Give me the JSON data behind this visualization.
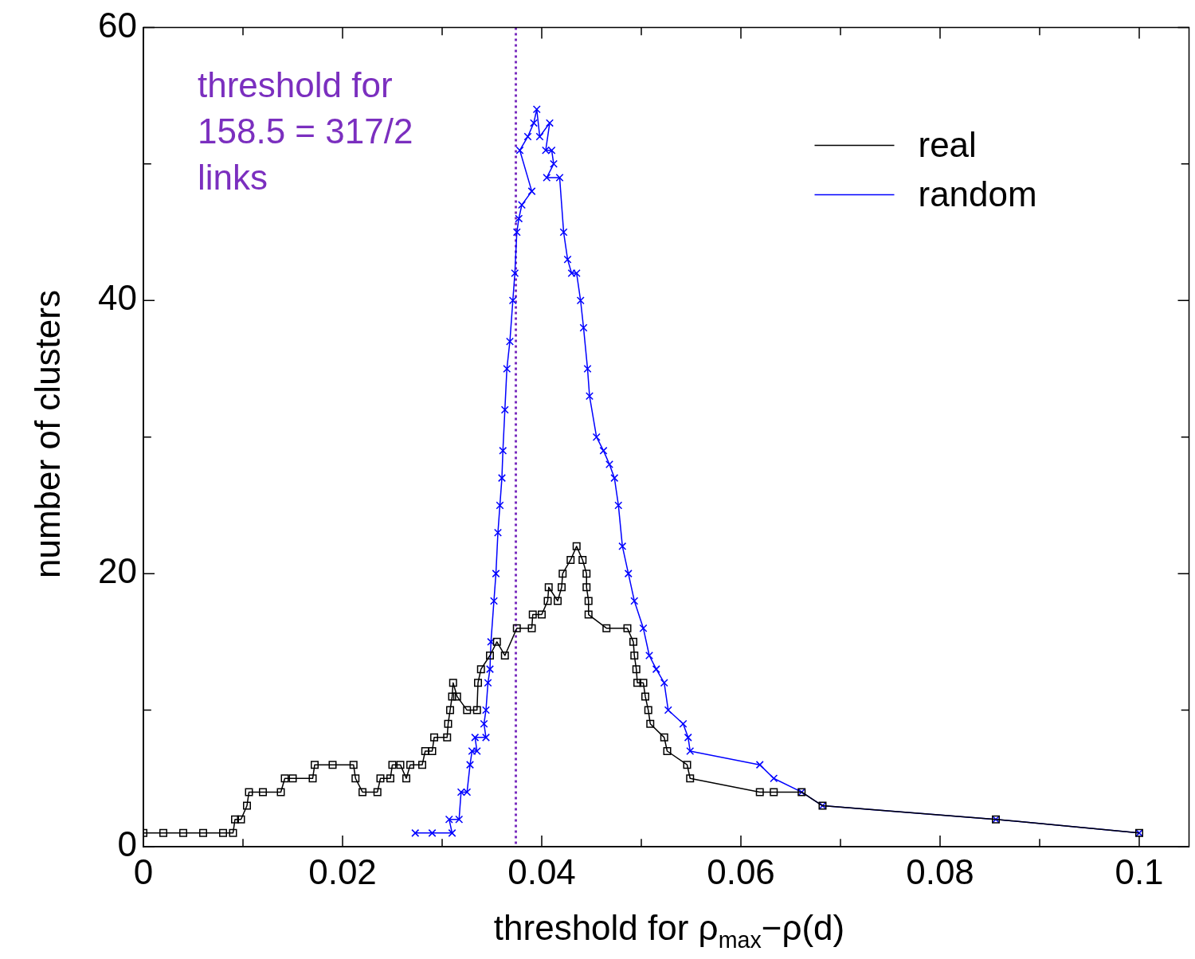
{
  "chart_data": {
    "type": "line",
    "xlabel": "threshold for ρ$_{max}$−ρ(d)",
    "ylabel": "number of clusters",
    "xlim": [
      0,
      0.105
    ],
    "xticks": [
      0,
      {
        "value": 0.01,
        "label": null
      },
      0.02,
      {
        "value": 0.03,
        "label": null
      },
      0.04,
      {
        "value": 0.05,
        "label": null
      },
      0.06,
      {
        "value": 0.07,
        "label": null
      },
      0.08,
      {
        "value": 0.09,
        "label": null
      },
      0.1
    ],
    "ylim": [
      0,
      60
    ],
    "yticks": [
      0,
      {
        "value": 10,
        "label": null
      },
      20,
      {
        "value": 30,
        "label": null
      },
      40,
      {
        "value": 50,
        "label": null
      },
      60
    ],
    "grid": false,
    "legend": "top right",
    "line_style": "solid",
    "ref_lines": [
      {
        "axis": "x",
        "value": 0.0374,
        "color": "#7b2fbf",
        "line_style": "dotted"
      }
    ],
    "annotations": [
      "threshold for\n158.5 = 317/2\nlinks"
    ],
    "series": [
      {
        "name": "real",
        "color": "#000000",
        "marker": "square",
        "x": [
          0,
          0.002,
          0.004,
          0.006,
          0.008,
          0.009,
          0.0092,
          0.0098,
          0.0104,
          0.0106,
          0.012,
          0.0138,
          0.0142,
          0.015,
          0.017,
          0.0172,
          0.019,
          0.0211,
          0.0213,
          0.022,
          0.0235,
          0.0238,
          0.0248,
          0.025,
          0.0258,
          0.0264,
          0.0268,
          0.028,
          0.0283,
          0.029,
          0.0292,
          0.0305,
          0.0306,
          0.0308,
          0.031,
          0.0311,
          0.0315,
          0.0325,
          0.0335,
          0.0336,
          0.0339,
          0.0348,
          0.0355,
          0.0363,
          0.0375,
          0.039,
          0.0391,
          0.04,
          0.0406,
          0.0407,
          0.0416,
          0.042,
          0.0421,
          0.0429,
          0.0435,
          0.0441,
          0.0445,
          0.0445,
          0.0447,
          0.0447,
          0.0465,
          0.0486,
          0.0492,
          0.0493,
          0.0495,
          0.0496,
          0.0502,
          0.0504,
          0.0507,
          0.0509,
          0.0523,
          0.0526,
          0.0546,
          0.0549,
          0.0619,
          0.0633,
          0.0661,
          0.0682,
          0.0856,
          0.1
        ],
        "values": [
          1,
          1,
          1,
          1,
          1,
          1,
          2,
          2,
          3,
          4,
          4,
          4,
          5,
          5,
          5,
          6,
          6,
          6,
          5,
          4,
          4,
          5,
          5,
          6,
          6,
          5,
          6,
          6,
          7,
          7,
          8,
          8,
          9,
          10,
          11,
          12,
          11,
          10,
          10,
          12,
          13,
          14,
          15,
          14,
          16,
          16,
          17,
          17,
          18,
          19,
          18,
          19,
          20,
          21,
          22,
          21,
          20,
          19,
          18,
          17,
          16,
          16,
          15,
          14,
          13,
          12,
          12,
          11,
          10,
          9,
          8,
          7,
          6,
          5,
          4,
          4,
          4,
          3,
          2,
          1
        ]
      },
      {
        "name": "random",
        "color": "#0000ff",
        "marker": "cross",
        "x": [
          0.0273,
          0.029,
          0.031,
          0.0307,
          0.0317,
          0.0319,
          0.0325,
          0.0328,
          0.033,
          0.0335,
          0.0333,
          0.0344,
          0.0342,
          0.0344,
          0.0346,
          0.0348,
          0.0349,
          0.0352,
          0.0354,
          0.0356,
          0.0358,
          0.036,
          0.0361,
          0.0363,
          0.0365,
          0.0368,
          0.0371,
          0.0373,
          0.0375,
          0.0377,
          0.038,
          0.039,
          0.0378,
          0.0386,
          0.0392,
          0.0395,
          0.0398,
          0.0408,
          0.0404,
          0.041,
          0.0412,
          0.0405,
          0.0418,
          0.0422,
          0.0426,
          0.043,
          0.0435,
          0.0439,
          0.0442,
          0.0446,
          0.0448,
          0.0455,
          0.0462,
          0.0468,
          0.0473,
          0.0477,
          0.0481,
          0.0487,
          0.0493,
          0.0502,
          0.0508,
          0.0515,
          0.0523,
          0.0527,
          0.0542,
          0.0547,
          0.0549,
          0.0619,
          0.0633,
          0.0661,
          0.0682,
          0.0856,
          0.1
        ],
        "values": [
          1,
          1,
          1,
          2,
          2,
          4,
          4,
          6,
          7,
          7,
          8,
          8,
          9,
          10,
          12,
          13,
          15,
          18,
          20,
          23,
          25,
          27,
          29,
          32,
          35,
          37,
          40,
          42,
          45,
          46,
          47,
          48,
          51,
          52,
          53,
          54,
          52,
          53,
          51,
          51,
          50,
          49,
          49,
          45,
          43,
          42,
          42,
          40,
          38,
          35,
          33,
          30,
          29,
          28,
          27,
          25,
          22,
          20,
          18,
          16,
          14,
          13,
          12,
          10,
          9,
          8,
          7,
          6,
          5,
          4,
          3,
          2,
          1
        ]
      }
    ]
  }
}
